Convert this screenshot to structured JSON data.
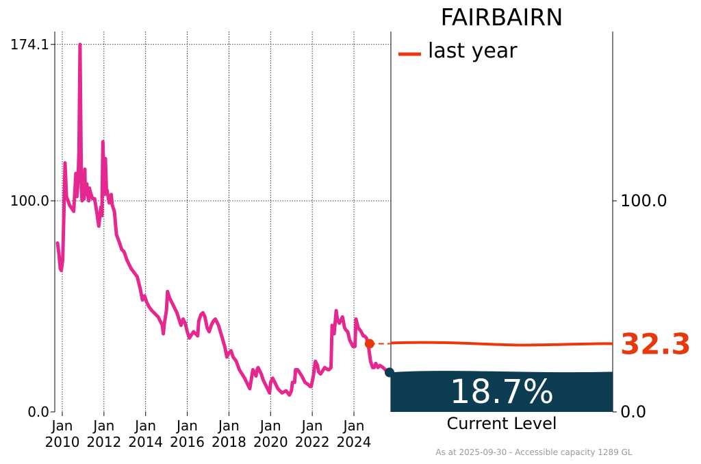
{
  "title": "FAIRBAIRN",
  "legend": {
    "label": "last year"
  },
  "current": {
    "percent_label": "18.7%",
    "caption": "Current Level",
    "value": 18.7
  },
  "last_year": {
    "value_label": "32.3",
    "value": 32.3
  },
  "footnote": "As at 2025-09-30 - Accessible capacity 1289 GL",
  "colors": {
    "history": "#e5288f",
    "last_year": "#e8380d",
    "current_fill": "#0d3d52"
  },
  "chart_data": {
    "type": "line",
    "title": "FAIRBAIRN",
    "ylim": [
      0,
      180
    ],
    "y_ticks_left": [
      {
        "value": 0,
        "label": "0.0"
      },
      {
        "value": 100,
        "label": "100.0"
      },
      {
        "value": 174.1,
        "label": "174.1"
      }
    ],
    "y_ticks_right": [
      {
        "value": 0,
        "label": "0.0"
      },
      {
        "value": 100,
        "label": "100.0"
      }
    ],
    "x_ticks": [
      {
        "year": 2010,
        "line1": "Jan",
        "line2": "2010"
      },
      {
        "year": 2012,
        "line1": "Jan",
        "line2": "2012"
      },
      {
        "year": 2014,
        "line1": "Jan",
        "line2": "2014"
      },
      {
        "year": 2016,
        "line1": "Jan",
        "line2": "2016"
      },
      {
        "year": 2018,
        "line1": "Jan",
        "line2": "2018"
      },
      {
        "year": 2020,
        "line1": "Jan",
        "line2": "2020"
      },
      {
        "year": 2022,
        "line1": "Jan",
        "line2": "2022"
      },
      {
        "year": 2024,
        "line1": "Jan",
        "line2": "2024"
      }
    ],
    "grid": true,
    "series": [
      {
        "x": [
          2009.77,
          2009.85,
          2009.9,
          2009.95,
          2010.02,
          2010.08,
          2010.13,
          2010.2,
          2010.35,
          2010.55,
          2010.65,
          2010.7,
          2010.75,
          2010.8,
          2010.85,
          2010.92,
          2010.95,
          2010.97,
          2011.0,
          2011.05,
          2011.08,
          2011.1,
          2011.13,
          2011.18,
          2011.22,
          2011.27,
          2011.3,
          2011.35,
          2011.45,
          2011.55,
          2011.65,
          2011.75,
          2011.85,
          2011.9,
          2011.95,
          2012.0,
          2012.03,
          2012.07,
          2012.12,
          2012.15,
          2012.2,
          2012.25,
          2012.3,
          2012.35,
          2012.4,
          2012.5,
          2012.6,
          2012.75,
          2012.85,
          2012.95,
          2013.0,
          2013.1,
          2013.3,
          2013.6,
          2013.75,
          2013.85,
          2013.95,
          2014.05,
          2014.1,
          2014.15,
          2014.3,
          2014.6,
          2014.8,
          2014.85,
          2014.9,
          2015.0,
          2015.05,
          2015.15,
          2015.3,
          2015.5,
          2015.7,
          2015.8,
          2015.9,
          2016.0,
          2016.1,
          2016.3,
          2016.5,
          2016.55,
          2016.65,
          2016.75,
          2016.85,
          2016.95,
          2017.05,
          2017.15,
          2017.25,
          2017.35,
          2017.5,
          2017.65,
          2017.8,
          2017.9,
          2018.0,
          2018.1,
          2018.2,
          2018.35,
          2018.5,
          2018.75,
          2019.0,
          2019.15,
          2019.3,
          2019.35,
          2019.4,
          2019.55,
          2019.65,
          2019.8,
          2019.95,
          2020.0,
          2020.1,
          2020.2,
          2020.35,
          2020.55,
          2020.75,
          2020.9,
          2021.0,
          2021.05,
          2021.15,
          2021.2,
          2021.3,
          2021.5,
          2021.65,
          2021.8,
          2021.9,
          2021.95,
          2022.05,
          2022.15,
          2022.25,
          2022.3,
          2022.4,
          2022.6,
          2022.75,
          2022.8,
          2022.9,
          2022.95,
          2023.05,
          2023.15,
          2023.2,
          2023.3,
          2023.45,
          2023.55,
          2023.6,
          2023.7,
          2023.8,
          2023.95,
          2024.0,
          2024.05,
          2024.1,
          2024.2,
          2024.35,
          2024.45,
          2024.5,
          2024.6,
          2024.7,
          2024.8,
          2024.9,
          2024.97,
          2025.05,
          2025.15,
          2025.25,
          2025.4,
          2025.5,
          2025.6,
          2025.7
        ],
        "y": [
          80,
          74,
          68,
          67,
          72,
          95,
          118,
          102,
          98,
          95,
          113,
          102,
          108,
          123,
          174.1,
          105,
          100,
          103,
          111,
          101,
          115,
          106,
          103,
          108,
          103,
          100,
          106,
          104,
          101,
          101,
          95,
          88,
          97,
          93,
          128,
          110,
          103,
          120,
          105,
          105,
          102,
          99,
          100,
          103,
          98,
          95,
          84,
          80,
          77,
          76,
          75,
          72,
          68,
          64,
          58,
          53,
          55,
          52,
          51,
          50,
          48,
          45,
          41,
          37,
          42,
          48,
          57,
          54,
          51,
          47,
          41,
          44,
          42,
          38,
          35,
          38,
          36,
          43,
          46,
          47,
          45,
          40,
          38,
          41,
          43,
          44,
          41,
          36,
          31,
          26,
          28,
          29,
          26,
          24,
          20,
          16,
          11,
          20,
          17,
          20,
          21,
          18,
          15,
          12,
          9,
          14,
          16,
          14,
          11,
          9,
          10,
          8,
          10,
          14,
          14,
          20,
          20,
          17,
          14,
          13,
          12,
          12,
          17,
          24,
          22,
          19,
          18,
          21,
          20,
          20,
          21,
          41,
          37,
          48,
          44,
          42,
          45,
          40,
          39,
          38,
          34,
          31,
          32,
          31,
          44,
          40,
          38,
          36,
          36,
          35,
          31,
          24,
          21,
          21,
          23,
          21,
          22,
          21,
          20,
          19.3,
          18.7
        ]
      },
      {
        "name": "last year",
        "x": [
          2024.75
        ],
        "y": [
          32.3
        ]
      }
    ]
  }
}
